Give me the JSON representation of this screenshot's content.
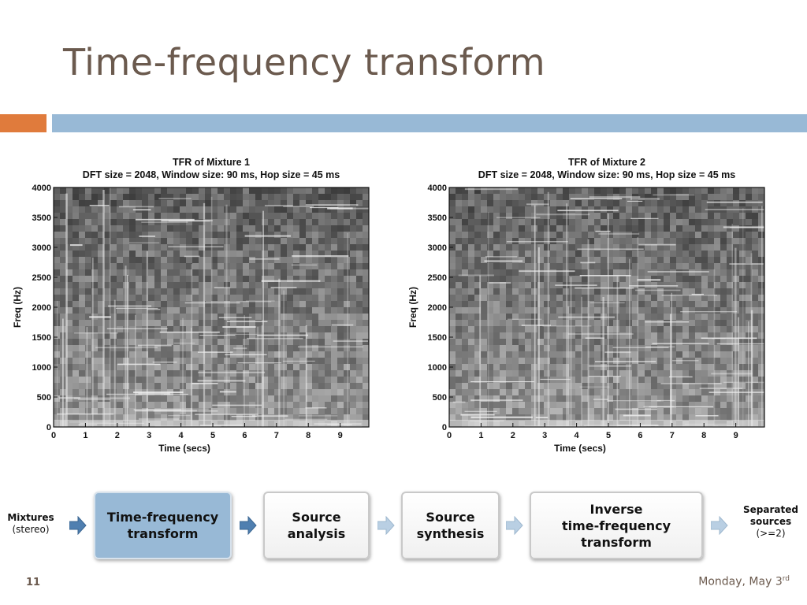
{
  "slide": {
    "title": "Time-frequency transform",
    "page_number": "11",
    "date": "Monday, May 3",
    "date_suffix": "rd"
  },
  "chart_data": [
    {
      "type": "heatmap",
      "title": "TFR of Mixture 1",
      "subtitle": "DFT size = 2048, Window size: 90 ms, Hop size = 45 ms",
      "xlabel": "Time (secs)",
      "ylabel": "Freq (Hz)",
      "x_ticks": [
        0,
        1,
        2,
        3,
        4,
        5,
        6,
        7,
        8,
        9
      ],
      "y_ticks": [
        0,
        500,
        1000,
        1500,
        2000,
        2500,
        3000,
        3500,
        4000
      ],
      "xlim": [
        0,
        9.9
      ],
      "ylim": [
        0,
        4000
      ],
      "colormap": "grayscale",
      "grid": false
    },
    {
      "type": "heatmap",
      "title": "TFR of Mixture 2",
      "subtitle": "DFT size = 2048, Window size: 90 ms, Hop size = 45 ms",
      "xlabel": "Time (secs)",
      "ylabel": "Freq (Hz)",
      "x_ticks": [
        0,
        1,
        2,
        3,
        4,
        5,
        6,
        7,
        8,
        9
      ],
      "y_ticks": [
        0,
        500,
        1000,
        1500,
        2000,
        2500,
        3000,
        3500,
        4000
      ],
      "xlim": [
        0,
        9.9
      ],
      "ylim": [
        0,
        4000
      ],
      "colormap": "grayscale",
      "grid": false
    }
  ],
  "pipeline": {
    "input_label": "Mixtures",
    "input_sub": "(stereo)",
    "steps": [
      {
        "label": "Time-frequency\ntransform",
        "active": true
      },
      {
        "label": "Source\nanalysis",
        "active": false
      },
      {
        "label": "Source\nsynthesis",
        "active": false
      },
      {
        "label": "Inverse\ntime-frequency\ntransform",
        "active": false
      }
    ],
    "output_label": "Separated\nsources",
    "output_sub": "(>=2)"
  },
  "colors": {
    "title": "#6b5a4e",
    "accent_orange": "#e07b3c",
    "accent_blue": "#98b9d6",
    "arrow_active": "#4f7fb0",
    "arrow_inactive": "#b9cfe3"
  }
}
